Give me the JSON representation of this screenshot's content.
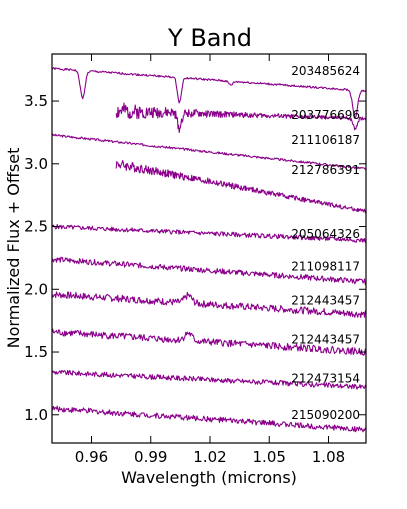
{
  "chart_data": {
    "type": "line",
    "title": "Y Band",
    "xlabel": "Wavelength (microns)",
    "ylabel": "Normalized Flux + Offset",
    "xlim": [
      0.94,
      1.099
    ],
    "ylim": [
      0.775,
      3.875
    ],
    "x_ticks": [
      0.96,
      0.99,
      1.02,
      1.05,
      1.08
    ],
    "x_tick_labels": [
      "0.96",
      "0.99",
      "1.02",
      "1.05",
      "1.08"
    ],
    "y_ticks": [
      1.0,
      1.5,
      2.0,
      2.5,
      3.0,
      3.5
    ],
    "y_tick_labels": [
      "1.0",
      "1.5",
      "2.0",
      "2.5",
      "3.0",
      "3.5"
    ],
    "grid": false,
    "line_color": "#8b008b",
    "series": [
      {
        "name": "203485624",
        "x_start": 0.94,
        "x_end": 1.099,
        "y_start": 3.76,
        "y_end": 3.58,
        "noise": 0.008,
        "seed": 1,
        "features": [
          {
            "x": 0.9555,
            "depth": 0.22,
            "width": 0.0012
          },
          {
            "x": 1.0045,
            "depth": 0.2,
            "width": 0.001
          },
          {
            "x": 1.0935,
            "depth": 0.22,
            "width": 0.0012
          },
          {
            "x": 1.0305,
            "depth": 0.03,
            "width": 0.001
          }
        ]
      },
      {
        "name": "203776696",
        "x_start": 0.9725,
        "x_end": 1.099,
        "y_start": 3.42,
        "y_end": 3.36,
        "noise": 0.06,
        "noise_decay": 0.0035,
        "seed": 2,
        "features": [
          {
            "x": 1.0045,
            "depth": 0.12,
            "width": 0.001
          },
          {
            "x": 1.0935,
            "depth": 0.08,
            "width": 0.001
          }
        ]
      },
      {
        "name": "211106187",
        "x_start": 0.94,
        "x_end": 1.099,
        "y_start": 3.23,
        "y_end": 2.96,
        "noise": 0.009,
        "seed": 3,
        "features": []
      },
      {
        "name": "212786391",
        "x_start": 0.9725,
        "x_end": 1.099,
        "y_start": 3.0,
        "y_end": 2.62,
        "noise": 0.03,
        "noise_decay": 0.006,
        "seed": 4,
        "features": []
      },
      {
        "name": "205064326",
        "x_start": 0.94,
        "x_end": 1.099,
        "y_start": 2.5,
        "y_end": 2.39,
        "noise": 0.018,
        "seed": 5,
        "features": []
      },
      {
        "name": "211098117",
        "x_start": 0.94,
        "x_end": 1.099,
        "y_start": 2.24,
        "y_end": 2.06,
        "noise": 0.022,
        "seed": 6,
        "features": []
      },
      {
        "name": "212443457",
        "x_start": 0.94,
        "x_end": 1.099,
        "y_start": 1.96,
        "y_end": 1.8,
        "noise": 0.028,
        "seed": 7,
        "features": [
          {
            "x": 1.009,
            "depth": -0.06,
            "width": 0.0018
          }
        ]
      },
      {
        "name": "212443457",
        "x_start": 0.94,
        "x_end": 1.099,
        "y_start": 1.66,
        "y_end": 1.5,
        "noise": 0.028,
        "seed": 8,
        "features": [
          {
            "x": 1.009,
            "depth": -0.06,
            "width": 0.0018
          }
        ]
      },
      {
        "name": "212473154",
        "x_start": 0.94,
        "x_end": 1.099,
        "y_start": 1.34,
        "y_end": 1.22,
        "noise": 0.02,
        "seed": 9,
        "features": []
      },
      {
        "name": "215090200",
        "x_start": 0.94,
        "x_end": 1.099,
        "y_start": 1.05,
        "y_end": 0.88,
        "noise": 0.022,
        "seed": 10,
        "features": []
      }
    ],
    "series_label_y": [
      3.74,
      3.39,
      3.19,
      2.95,
      2.44,
      2.18,
      1.91,
      1.6,
      1.29,
      1.0
    ]
  }
}
